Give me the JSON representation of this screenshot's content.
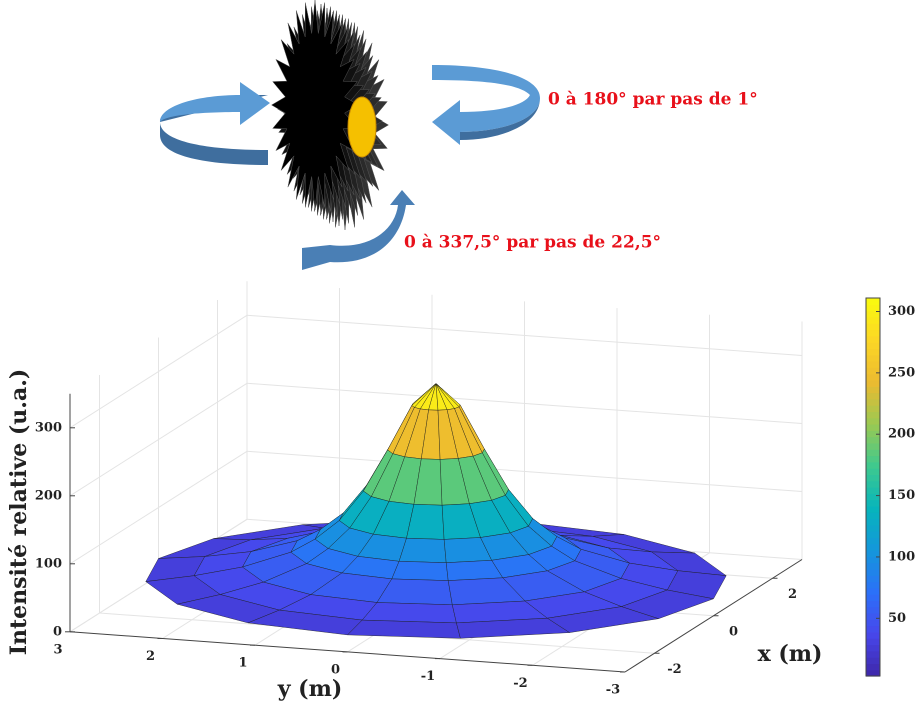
{
  "diagram": {
    "rotation_top": "0 à 180° par pas de 1°",
    "rotation_bottom": "0 à 337,5° par pas de 22,5°"
  },
  "chart_data": {
    "type": "surface",
    "xlabel": "x (m)",
    "ylabel": "y (m)",
    "zlabel": "Intensité relative (u.a.)",
    "r": [
      0,
      0.25,
      0.5,
      0.75,
      1,
      1.25,
      1.5,
      2,
      2.5,
      3
    ],
    "z": [
      312,
      280,
      215,
      155,
      112,
      85,
      66,
      45,
      33,
      25
    ],
    "theta": [
      0,
      22.5,
      45,
      67.5,
      90,
      112.5,
      135,
      157.5,
      180,
      202.5,
      225,
      247.5,
      270,
      292.5,
      315,
      337.5
    ],
    "xlim": [
      -3,
      3
    ],
    "ylim": [
      -3,
      3
    ],
    "zlim": [
      0,
      350
    ],
    "xticks": [
      -2,
      0,
      2
    ],
    "yticks": [
      3,
      2,
      1,
      0,
      -1,
      -2,
      -3
    ],
    "zticks": [
      0,
      100,
      200,
      300
    ],
    "clim": [
      3,
      311
    ],
    "cticks": [
      50,
      100,
      150,
      200,
      250,
      300
    ],
    "colormap": "parula",
    "grid": true
  }
}
